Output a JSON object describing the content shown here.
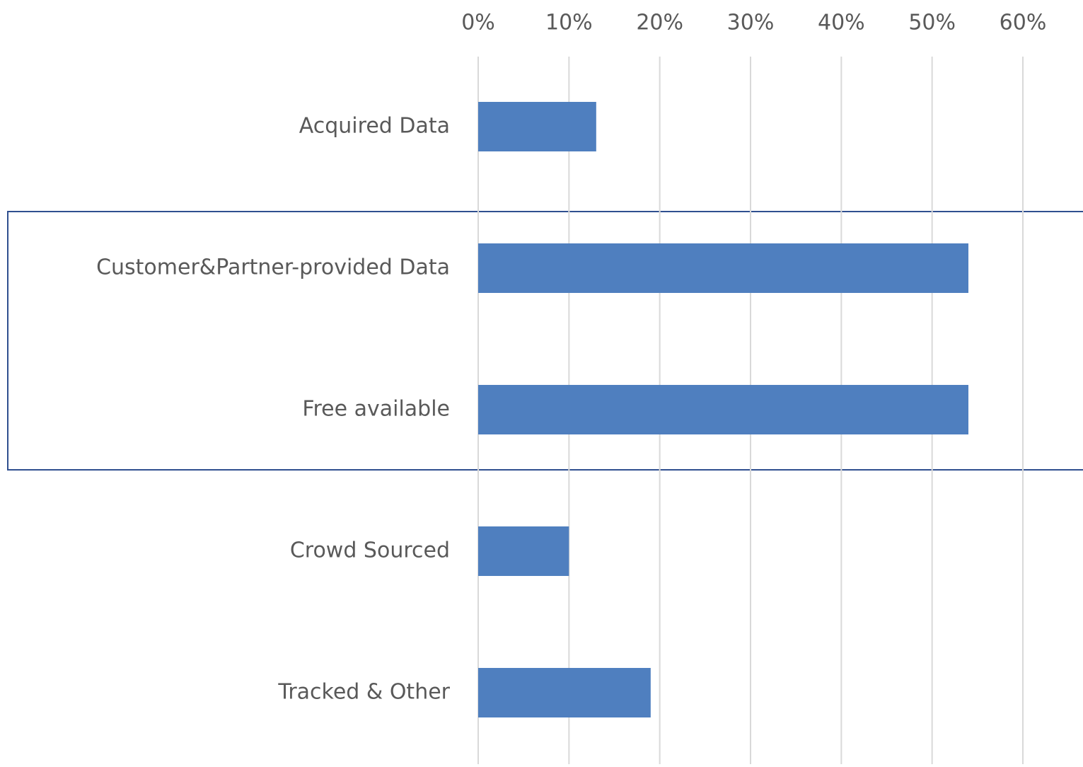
{
  "chart_data": {
    "type": "bar",
    "orientation": "horizontal",
    "categories": [
      "Acquired Data",
      "Customer&Partner-provided Data",
      "Free available",
      "Crowd Sourced",
      "Tracked & Other"
    ],
    "values": [
      13,
      54,
      54,
      10,
      19
    ],
    "color": "#4f7fbf",
    "xlim": [
      0,
      60
    ],
    "xticks": [
      {
        "value": 0,
        "label": "0%"
      },
      {
        "value": 10,
        "label": "10%"
      },
      {
        "value": 20,
        "label": "20%"
      },
      {
        "value": 30,
        "label": "30%"
      },
      {
        "value": 40,
        "label": "40%"
      },
      {
        "value": 50,
        "label": "50%"
      },
      {
        "value": 60,
        "label": "60%"
      }
    ],
    "grid": true
  }
}
